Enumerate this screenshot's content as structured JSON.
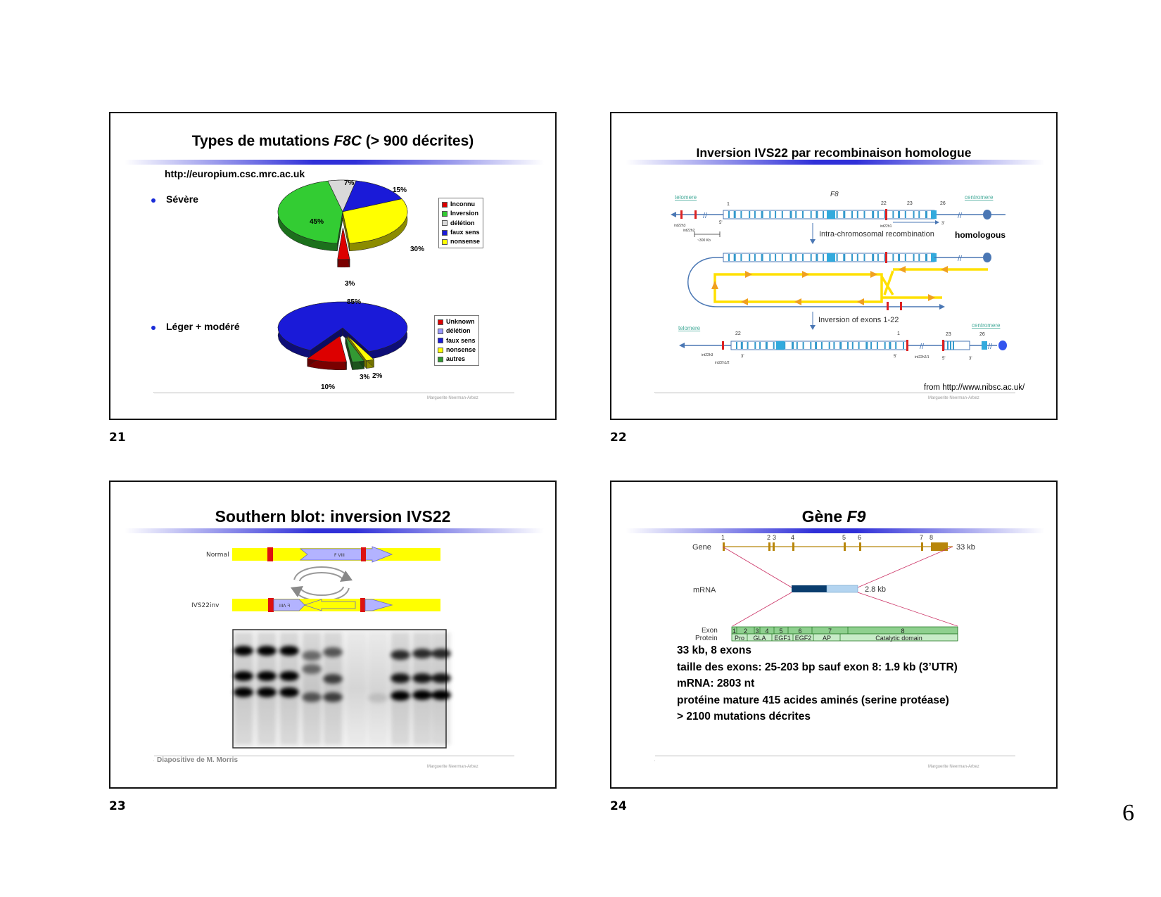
{
  "page_number": "6",
  "slide_numbers": [
    "21",
    "22",
    "23",
    "24"
  ],
  "author": "Marguerite Neerman-Arbez",
  "slide21": {
    "title_pre": "Types de mutations ",
    "title_em": "F8C",
    "title_post": " (> 900 décrites)",
    "url": "http://europium.csc.mrc.ac.uk",
    "bullet1": "Sévère",
    "bullet2": "Léger + modéré",
    "chart_data": [
      {
        "type": "pie",
        "title": "Sévère",
        "slices": [
          {
            "label": "Inconnu",
            "value": 3,
            "color": "#dd0000"
          },
          {
            "label": "Inversion",
            "value": 45,
            "color": "#33cc33"
          },
          {
            "label": "délétion",
            "value": 7,
            "color": "#d9d9d9"
          },
          {
            "label": "faux sens",
            "value": 15,
            "color": "#1a1ad8"
          },
          {
            "label": "nonsense",
            "value": 30,
            "color": "#ffff00"
          }
        ],
        "value_labels": [
          "3%",
          "45%",
          "7%",
          "15%",
          "30%"
        ]
      },
      {
        "type": "pie",
        "title": "Léger + modéré",
        "slices": [
          {
            "label": "Unknown",
            "value": 10,
            "color": "#dd0000"
          },
          {
            "label": "délétion",
            "value": 0,
            "color": "#9999ff"
          },
          {
            "label": "faux sens",
            "value": 85,
            "color": "#1a1ad8"
          },
          {
            "label": "nonsense",
            "value": 2,
            "color": "#ffff00"
          },
          {
            "label": "autres",
            "value": 3,
            "color": "#339933"
          }
        ],
        "value_labels": [
          "10%",
          "85%",
          "2%",
          "3%"
        ]
      }
    ]
  },
  "slide22": {
    "title": "Inversion IVS22 par recombinaison homologue",
    "telomere": "telomere",
    "centromere": "centromere",
    "gene": "F8",
    "exon_nums_top": [
      "1",
      "22",
      "23",
      "26"
    ],
    "int_labels_top": [
      "int22h3",
      "int22h2",
      "int22h1"
    ],
    "scale": "~300 Kb",
    "five_prime": "5'",
    "three_prime": "3'",
    "step1": "Intra-chromosomal recombination",
    "homologous": "homologous",
    "step2": "Inversion of exons 1-22",
    "exon_nums_bottom": [
      "22",
      "1",
      "23",
      "26"
    ],
    "int_labels_bottom": [
      "int22h3",
      "int22h1/2",
      "int22h2/1"
    ],
    "source": "from http://www.nibsc.ac.uk/"
  },
  "slide23": {
    "title": "Southern blot: inversion IVS22",
    "normal": "Normal",
    "ivs22inv": "IVS22inv",
    "fviii": "F VIII",
    "fviii_flipped": "IIIΛ ᖷ",
    "credit": "Diapositive de M. Morris"
  },
  "slide24": {
    "title_pre": "Gène ",
    "title_em": "F9",
    "gene_label": "Gene",
    "mrna_label": "mRNA",
    "exon_label": "Exon",
    "protein_label": "Protein",
    "gene_size": "33 kb",
    "mrna_size": "2.8 kb",
    "exon_numbers": [
      "1",
      "2",
      "3",
      "4",
      "5",
      "6",
      "7",
      "8"
    ],
    "exon_row": [
      "1",
      "2",
      "3",
      "4",
      "5",
      "6",
      "7",
      "8"
    ],
    "protein_domains": [
      "Pro",
      "GLA",
      "EGF1",
      "EGF2",
      "AP",
      "Catalytic domain"
    ],
    "facts": [
      "33 kb, 8 exons",
      "taille des exons: 25-203 bp sauf exon 8: 1.9 kb (3’UTR)",
      "mRNA: 2803 nt",
      "protéine mature 415 acides aminés (serine protéase)",
      "> 2100 mutations décrites"
    ]
  }
}
